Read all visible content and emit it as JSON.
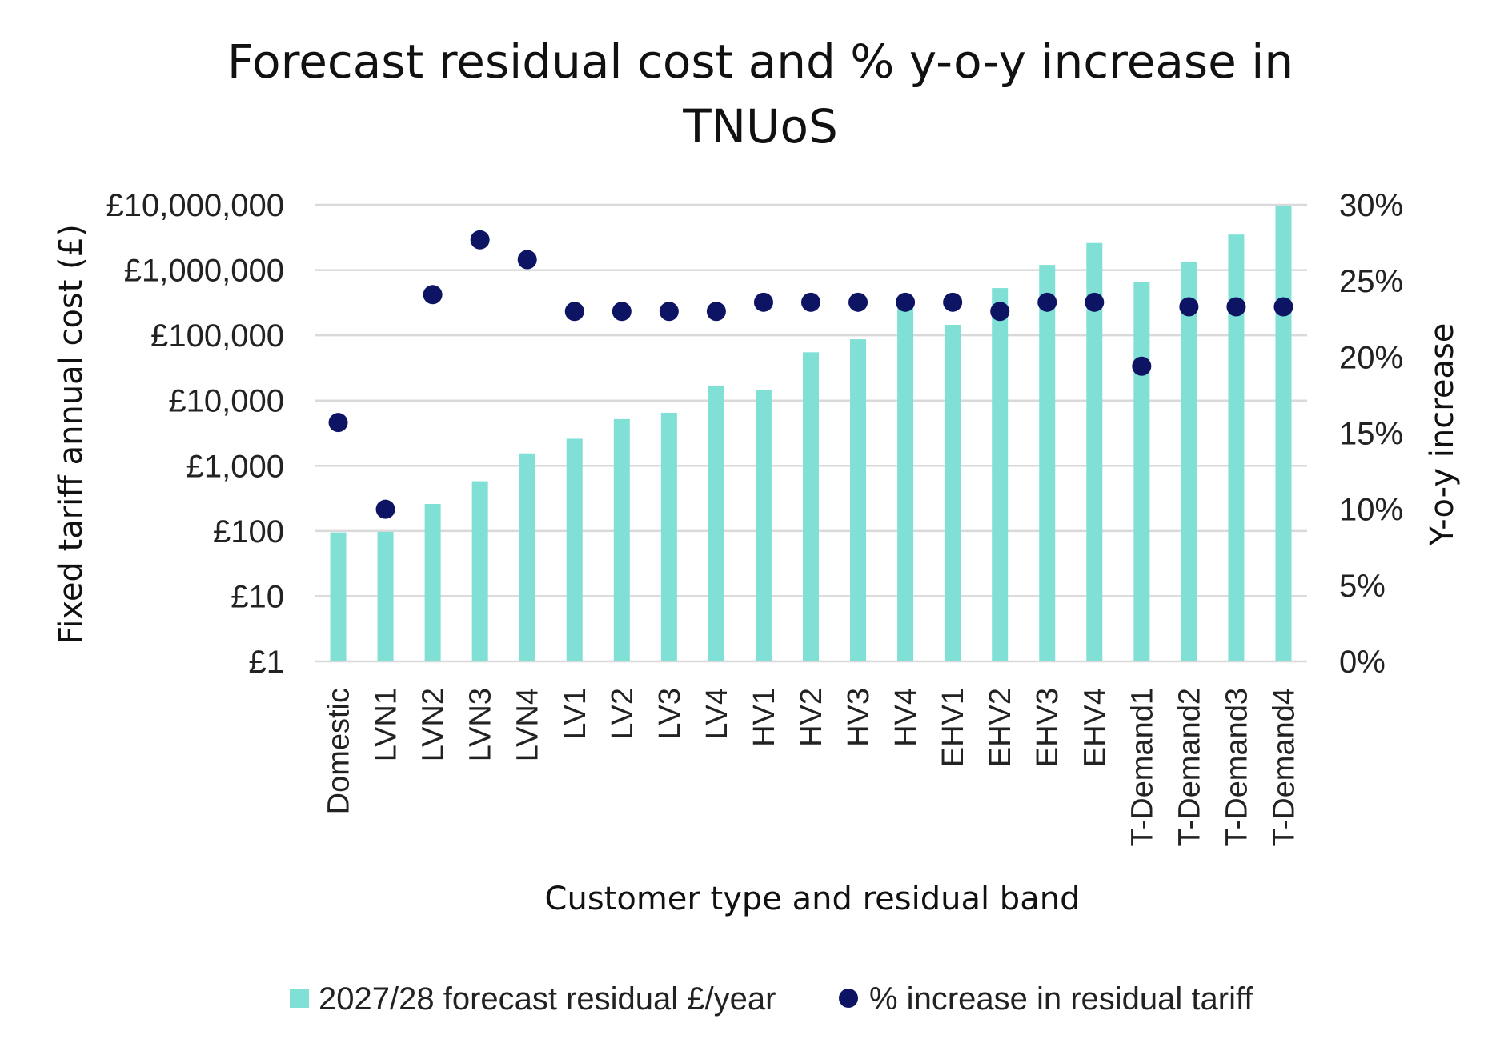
{
  "chart_data": {
    "type": "bar",
    "title_lines": [
      "Forecast residual cost and % y-o-y increase in",
      "TNUoS"
    ],
    "xlabel": "Customer type and residual band",
    "ylabel": "Fixed tariff annual cost (£)",
    "y2label": "Y-o-y increase",
    "categories": [
      "Domestic",
      "LVN1",
      "LVN2",
      "LVN3",
      "LVN4",
      "LV1",
      "LV2",
      "LV3",
      "LV4",
      "HV1",
      "HV2",
      "HV3",
      "HV4",
      "EHV1",
      "EHV2",
      "EHV3",
      "EHV4",
      "T-Demand1",
      "T-Demand2",
      "T-Demand3",
      "T-Demand4"
    ],
    "y_scale": "log",
    "ylim": [
      1,
      10000000
    ],
    "y_ticks": [
      "£1",
      "£10",
      "£100",
      "£1,000",
      "£10,000",
      "£100,000",
      "£1,000,000",
      "£10,000,000"
    ],
    "y2lim": [
      0,
      30
    ],
    "y2_ticks": [
      "0%",
      "5%",
      "10%",
      "15%",
      "20%",
      "25%",
      "30%"
    ],
    "grid": true,
    "legend_position": "bottom",
    "series": [
      {
        "name": "2027/28 forecast residual £/year",
        "type": "bar",
        "axis": "left",
        "color": "#80e0d6",
        "values": [
          95,
          97,
          260,
          580,
          1550,
          2600,
          5200,
          6500,
          17000,
          14500,
          55000,
          87000,
          260000,
          145000,
          530000,
          1200000,
          2600000,
          650000,
          1350000,
          3500000,
          9700000
        ]
      },
      {
        "name": "% increase in residual tariff",
        "type": "scatter",
        "axis": "right",
        "color": "#0d1463",
        "values": [
          15.7,
          10.0,
          24.1,
          27.7,
          26.4,
          23.0,
          23.0,
          23.0,
          23.0,
          23.6,
          23.6,
          23.6,
          23.6,
          23.6,
          23.0,
          23.6,
          23.6,
          19.4,
          23.3,
          23.3,
          23.3
        ]
      }
    ]
  }
}
